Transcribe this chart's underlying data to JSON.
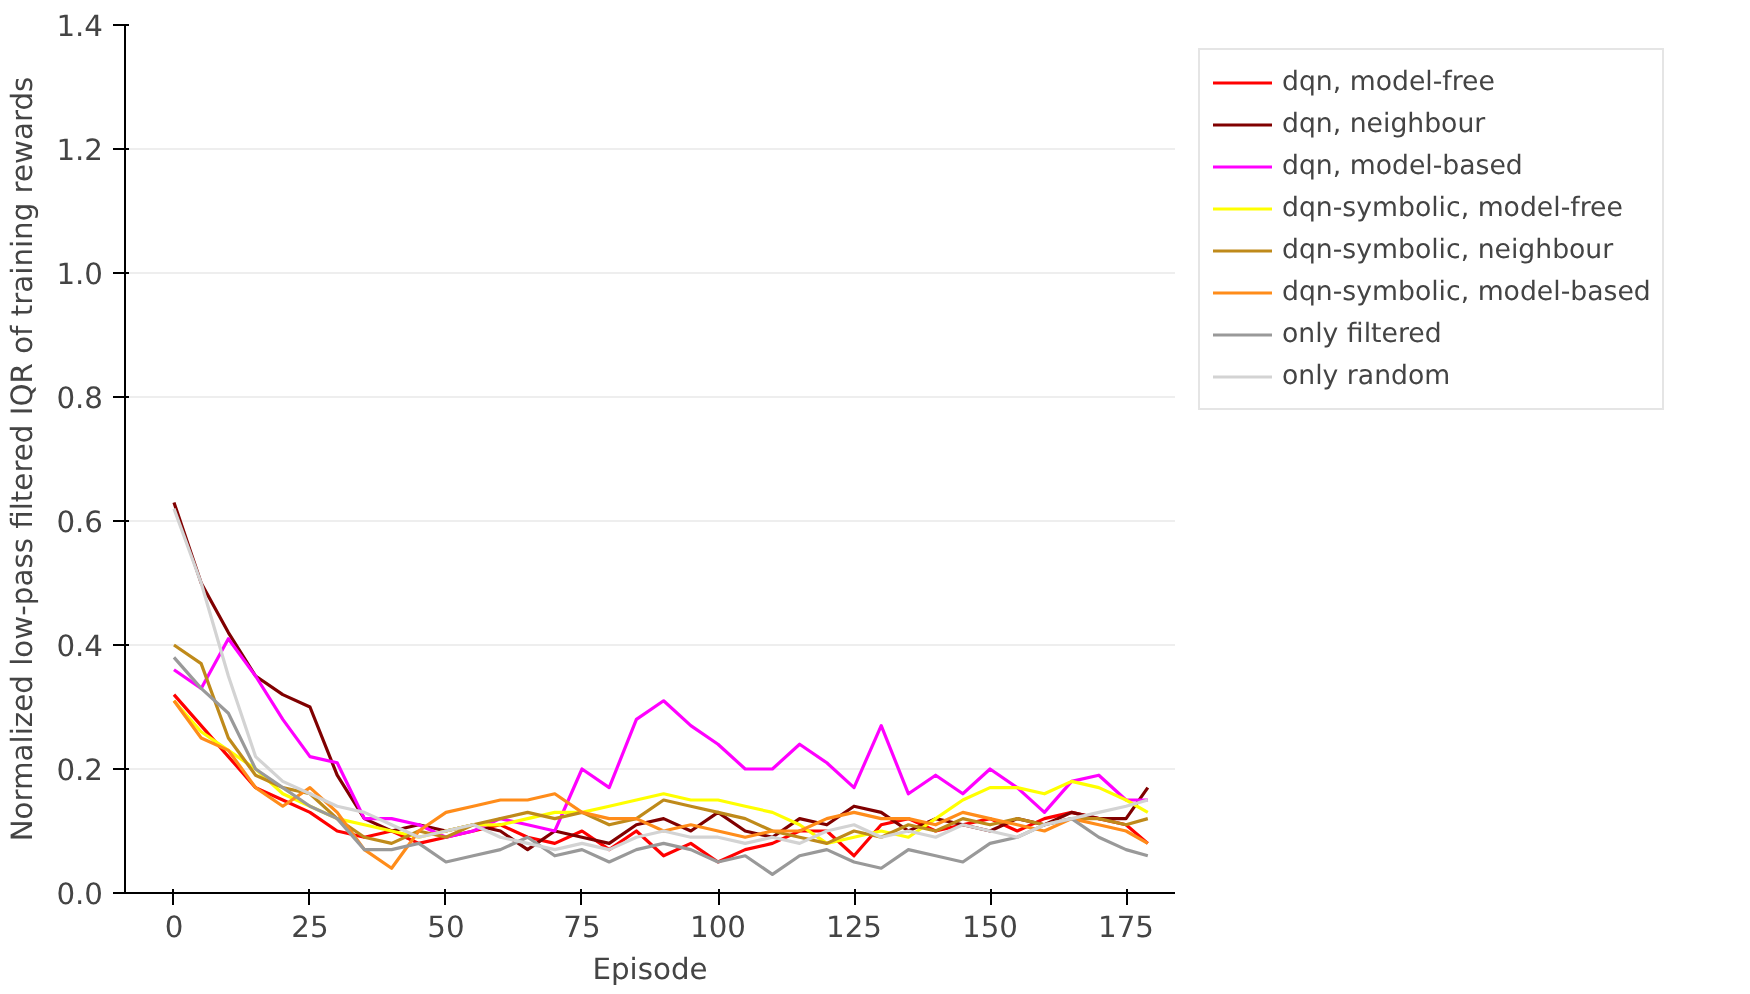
{
  "chart_data": {
    "type": "line",
    "xlabel": "Episode",
    "ylabel": "Normalized low-pass filtered IQR of training rewards",
    "x": [
      0,
      5,
      10,
      15,
      20,
      25,
      30,
      35,
      40,
      45,
      50,
      55,
      60,
      65,
      70,
      75,
      80,
      85,
      90,
      95,
      100,
      105,
      110,
      115,
      120,
      125,
      130,
      135,
      140,
      145,
      150,
      155,
      160,
      165,
      170,
      175,
      179
    ],
    "xlim": [
      -9,
      184
    ],
    "ylim": [
      0,
      1.4
    ],
    "xticks": [
      0,
      25,
      50,
      75,
      100,
      125,
      150,
      175
    ],
    "yticks": [
      {
        "value": 0,
        "label": "0.0"
      },
      0.2,
      0.4,
      0.6,
      0.8,
      {
        "value": 1,
        "label": "1.0"
      },
      1.2,
      1.4
    ],
    "grid": "y",
    "legend": "top right",
    "line_style": "solid",
    "marker": "none",
    "series": [
      {
        "name": "dqn, model-free",
        "color": "#ff0000",
        "values": [
          0.32,
          0.27,
          0.22,
          0.17,
          0.15,
          0.13,
          0.1,
          0.09,
          0.1,
          0.08,
          0.09,
          0.1,
          0.11,
          0.09,
          0.08,
          0.1,
          0.07,
          0.1,
          0.06,
          0.08,
          0.05,
          0.07,
          0.08,
          0.1,
          0.1,
          0.06,
          0.11,
          0.12,
          0.1,
          0.11,
          0.12,
          0.1,
          0.12,
          0.13,
          0.12,
          0.11,
          0.08
        ]
      },
      {
        "name": "dqn, neighbour",
        "color": "#800000",
        "values": [
          0.63,
          0.5,
          0.42,
          0.35,
          0.32,
          0.3,
          0.19,
          0.12,
          0.1,
          0.11,
          0.1,
          0.11,
          0.1,
          0.07,
          0.1,
          0.09,
          0.08,
          0.11,
          0.12,
          0.1,
          0.13,
          0.1,
          0.09,
          0.12,
          0.11,
          0.14,
          0.13,
          0.1,
          0.12,
          0.11,
          0.1,
          0.12,
          0.11,
          0.13,
          0.12,
          0.12,
          0.17
        ]
      },
      {
        "name": "dqn, model-based",
        "color": "#ff00ff",
        "values": [
          0.36,
          0.33,
          0.41,
          0.35,
          0.28,
          0.22,
          0.21,
          0.12,
          0.12,
          0.11,
          0.09,
          0.1,
          0.12,
          0.11,
          0.1,
          0.2,
          0.17,
          0.28,
          0.31,
          0.27,
          0.24,
          0.2,
          0.2,
          0.24,
          0.21,
          0.17,
          0.27,
          0.16,
          0.19,
          0.16,
          0.2,
          0.17,
          0.13,
          0.18,
          0.19,
          0.15,
          0.15
        ]
      },
      {
        "name": "dqn-symbolic, model-free",
        "color": "#ffff00",
        "values": [
          0.31,
          0.26,
          0.23,
          0.2,
          0.16,
          0.14,
          0.12,
          0.11,
          0.1,
          0.09,
          0.1,
          0.11,
          0.11,
          0.12,
          0.13,
          0.13,
          0.14,
          0.15,
          0.16,
          0.15,
          0.15,
          0.14,
          0.13,
          0.11,
          0.08,
          0.09,
          0.1,
          0.09,
          0.12,
          0.15,
          0.17,
          0.17,
          0.16,
          0.18,
          0.17,
          0.15,
          0.13
        ]
      },
      {
        "name": "dqn-symbolic, neighbour",
        "color": "#bf8a1a",
        "values": [
          0.4,
          0.37,
          0.25,
          0.19,
          0.17,
          0.16,
          0.12,
          0.09,
          0.08,
          0.1,
          0.09,
          0.11,
          0.12,
          0.13,
          0.12,
          0.13,
          0.11,
          0.12,
          0.15,
          0.14,
          0.13,
          0.12,
          0.1,
          0.09,
          0.08,
          0.1,
          0.09,
          0.11,
          0.1,
          0.12,
          0.11,
          0.12,
          0.11,
          0.12,
          0.12,
          0.11,
          0.12
        ]
      },
      {
        "name": "dqn-symbolic, model-based",
        "color": "#ff8c1a",
        "values": [
          0.31,
          0.25,
          0.23,
          0.17,
          0.14,
          0.17,
          0.13,
          0.07,
          0.04,
          0.1,
          0.13,
          0.14,
          0.15,
          0.15,
          0.16,
          0.13,
          0.12,
          0.12,
          0.1,
          0.11,
          0.1,
          0.09,
          0.1,
          0.1,
          0.12,
          0.13,
          0.12,
          0.12,
          0.11,
          0.13,
          0.12,
          0.11,
          0.1,
          0.12,
          0.11,
          0.1,
          0.08
        ]
      },
      {
        "name": "only filtered",
        "color": "#999999",
        "values": [
          0.38,
          0.33,
          0.29,
          0.2,
          0.17,
          0.14,
          0.12,
          0.07,
          0.07,
          0.08,
          0.05,
          0.06,
          0.07,
          0.09,
          0.06,
          0.07,
          0.05,
          0.07,
          0.08,
          0.07,
          0.05,
          0.06,
          0.03,
          0.06,
          0.07,
          0.05,
          0.04,
          0.07,
          0.06,
          0.05,
          0.08,
          0.09,
          0.11,
          0.12,
          0.09,
          0.07,
          0.06
        ]
      },
      {
        "name": "only random",
        "color": "#d3d3d3",
        "values": [
          0.62,
          0.5,
          0.35,
          0.22,
          0.18,
          0.16,
          0.14,
          0.13,
          0.11,
          0.09,
          0.1,
          0.11,
          0.09,
          0.08,
          0.07,
          0.08,
          0.07,
          0.09,
          0.1,
          0.09,
          0.09,
          0.08,
          0.09,
          0.08,
          0.1,
          0.11,
          0.09,
          0.1,
          0.09,
          0.11,
          0.1,
          0.09,
          0.11,
          0.12,
          0.13,
          0.14,
          0.15
        ]
      }
    ]
  }
}
